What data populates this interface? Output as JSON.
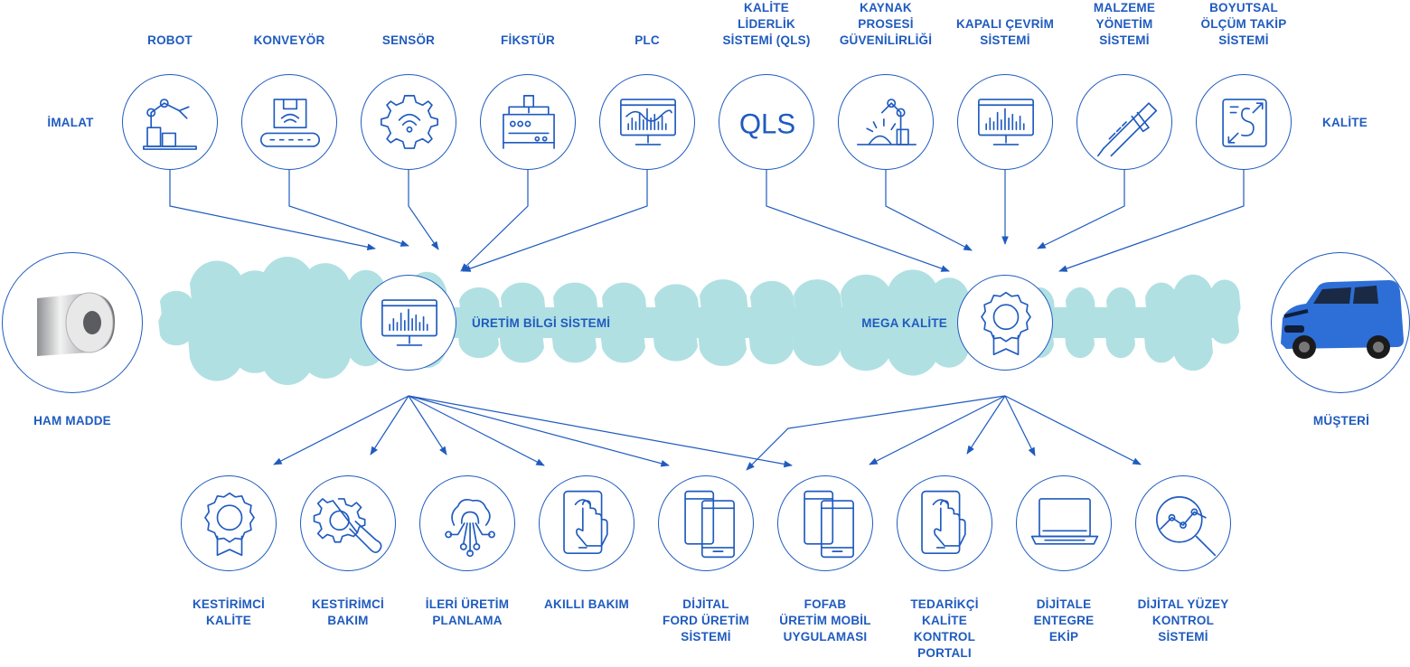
{
  "side": {
    "left": "İMALAT",
    "right": "KALİTE"
  },
  "ends": {
    "raw": "HAM MADDE",
    "customer": "MÜŞTERİ"
  },
  "hubs": {
    "mes": "ÜRETİM BİLGİ SİSTEMİ",
    "quality": "MEGA KALİTE"
  },
  "top": [
    {
      "label": "ROBOT",
      "icon": "robot-arm-icon"
    },
    {
      "label": "KONVEYÖR",
      "icon": "conveyor-icon"
    },
    {
      "label": "SENSÖR",
      "icon": "sensor-gear-icon"
    },
    {
      "label": "FİKSTÜR",
      "icon": "fixture-machine-icon"
    },
    {
      "label": "PLC",
      "icon": "plc-monitor-icon"
    },
    {
      "label": "KALİTE\nLİDERLİK\nSİSTEMİ (QLS)",
      "icon": "qls-text-icon",
      "icon_text": "QLS"
    },
    {
      "label": "KAYNAK\nPROSESİ\nGÜVENİLİRLİĞİ",
      "icon": "welding-robot-icon"
    },
    {
      "label": "KAPALI ÇEVRİM\nSİSTEMİ",
      "icon": "monitor-chart-icon"
    },
    {
      "label": "MALZEME\nYÖNETİM\nSİSTEMİ",
      "icon": "caliper-icon"
    },
    {
      "label": "BOYUTSAL\nÖLÇÜM TAKİP\nSİSTEMİ",
      "icon": "dimension-tracking-icon"
    }
  ],
  "bottom": [
    {
      "label": "KESTİRİMCİ\nKALİTE",
      "icon": "quality-badge-icon"
    },
    {
      "label": "KESTİRİMCİ\nBAKIM",
      "icon": "gear-wrench-icon"
    },
    {
      "label": "İLERİ ÜRETİM\nPLANLAMA",
      "icon": "network-gear-icon"
    },
    {
      "label": "AKILLI BAKIM",
      "icon": "touch-tablet-icon"
    },
    {
      "label": "DİJİTAL\nFORD ÜRETİM\nSİSTEMİ",
      "icon": "dual-phone-icon"
    },
    {
      "label": "FOFAB\nÜRETİM MOBİL\nUYGULAMASI",
      "icon": "dual-phone-icon"
    },
    {
      "label": "TEDARİKÇİ\nKALİTE\nKONTROL\nPORTALI",
      "icon": "touch-tablet-icon"
    },
    {
      "label": "DİJİTALE\nENTEGRE\nEKİP",
      "icon": "laptop-icon"
    },
    {
      "label": "DİJİTAL YÜZEY\nKONTROL\nSİSTEMİ",
      "icon": "surface-inspection-icon"
    }
  ],
  "colors": {
    "primary": "#1f5bbf",
    "spine": "#a9dde0",
    "van": "#2d6fd6"
  }
}
